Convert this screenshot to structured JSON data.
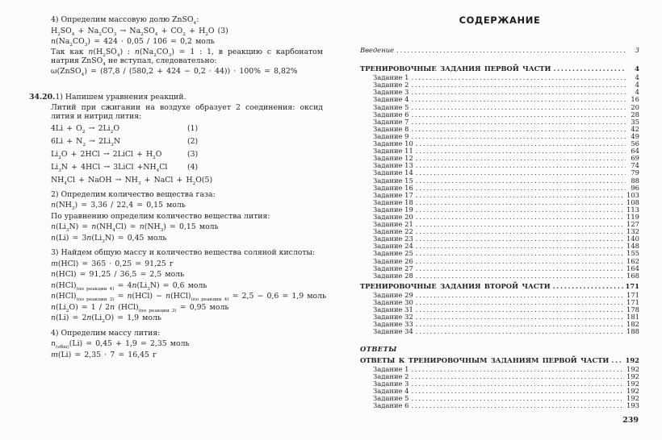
{
  "left_page": {
    "lines": [
      {
        "kind": "step",
        "text": "4) Определим массовую долю ZnSO_{4}:"
      },
      {
        "kind": "formula",
        "text": "H_{2}SO_{4} + Na_{2}CO_{3} → Na_{2}SO_{4} + CO_{2} + H_{2}O (3)"
      },
      {
        "kind": "formula",
        "text": "//n//(Na_{2}CO_{3}) = 424 · 0,05 / 106 = 0,2 моль"
      },
      {
        "kind": "para",
        "text": "Так как //n//(H_{2}SO_{4}) : //n//(Na_{2}CO_{3}) = 1 : 1, в реакцию с карбонатом натрия ZnSO_{4} не вступал, следовательно:"
      },
      {
        "kind": "formula",
        "text": "ω(ZnSO_{4}) = (87,8 / (580,2 + 424 − 0,2 · 44)) · 100% = 8,82%"
      },
      {
        "kind": "problem",
        "label": "34.20.",
        "text": "1) Напишем уравнения реакций."
      },
      {
        "kind": "para",
        "text": "Литий при сжигании на воздухе образует 2 соединения: оксид лития и ни­трид лития:"
      },
      {
        "kind": "equation",
        "text": "4Li + O_{2} → 2Li_{2}O",
        "num": "(1)"
      },
      {
        "kind": "equation",
        "text": "6Li + N_{2} → 2Li_{3}N",
        "num": "(2)"
      },
      {
        "kind": "equation",
        "text": "Li_{2}O + 2HCl → 2LiCl + H_{2}O",
        "num": "(3)"
      },
      {
        "kind": "equation",
        "text": "Li_{3}N + 4HCl → 3LiCl +NH_{4}Cl",
        "num": "(4)"
      },
      {
        "kind": "equation",
        "text": "NH_{4}Cl + NaOH → NH_{3} + NaCl + H_{2}O",
        "num": "(5)"
      },
      {
        "kind": "step",
        "text": "2) Определим количество вещества газа:"
      },
      {
        "kind": "formula",
        "text": "//n//(NH_{3}) = 3,36 / 22,4 = 0,15 моль"
      },
      {
        "kind": "plain",
        "text": "По уравнению определим количество вещества лития:"
      },
      {
        "kind": "formula",
        "text": "//n//(Li_{3}N) = //n//(NH_{4}Cl) = //n//(NH_{3}) = 0,15 моль"
      },
      {
        "kind": "formula",
        "text": "//n//(Li) = 3//n//(Li_{3}N) = 0,45 моль"
      },
      {
        "kind": "step",
        "text": "3) Найдем общую массу и количество вещества соляной кислоты:"
      },
      {
        "kind": "formula",
        "text": "//m//(HCl) = 365 · 0,25 = 91,25 г"
      },
      {
        "kind": "formula",
        "text": "//n//(HCl) = 91,25 / 36,5 = 2,5 моль"
      },
      {
        "kind": "formula",
        "text": "//n//(HCl)_{(по реакции 4)} = 4//n//(Li_{3}N) = 0,6 моль"
      },
      {
        "kind": "formula",
        "text": "//n//(HCl)_{(по реакции 3)} = //n//(HCl) − //n//(HCl)_{(по реакции 4)} = 2,5 − 0,6 = 1,9 моль"
      },
      {
        "kind": "formula",
        "text": "//n//(Li_{2}O) = 1 / 2//n// (HCl)_{(по реакции 3)} = 0,95 моль"
      },
      {
        "kind": "formula",
        "text": "//n//(Li) = 2//n//(Li_{2}O) = 1,9 моль"
      },
      {
        "kind": "step",
        "text": "4) Определим массу лития:"
      },
      {
        "kind": "formula",
        "text": "//n//_{(общ)}(Li) = 0,45 + 1,9 = 2,35 моль"
      },
      {
        "kind": "formula",
        "text": "//m//(Li) = 2,35 · 7 = 16,45 г"
      }
    ]
  },
  "right_page": {
    "title": "СОДЕРЖАНИЕ",
    "rows": [
      {
        "kind": "intro",
        "label": "Введение",
        "page": "3"
      },
      {
        "kind": "section",
        "label": "ТРЕНИРОВОЧНЫЕ ЗАДАНИЯ ПЕРВОЙ ЧАСТИ",
        "page": "4"
      },
      {
        "kind": "entry",
        "label": "Задание 1",
        "page": "4"
      },
      {
        "kind": "entry",
        "label": "Задание 2",
        "page": "4"
      },
      {
        "kind": "entry",
        "label": "Задание 3",
        "page": "4"
      },
      {
        "kind": "entry",
        "label": "Задание 4",
        "page": "16"
      },
      {
        "kind": "entry",
        "label": "Задание 5",
        "page": "20"
      },
      {
        "kind": "entry",
        "label": "Задание 6",
        "page": "28"
      },
      {
        "kind": "entry",
        "label": "Задание 7",
        "page": "35"
      },
      {
        "kind": "entry",
        "label": "Задание 8",
        "page": "42"
      },
      {
        "kind": "entry",
        "label": "Задание 9",
        "page": "49"
      },
      {
        "kind": "entry",
        "label": "Задание 10",
        "page": "56"
      },
      {
        "kind": "entry",
        "label": "Задание 11",
        "page": "64"
      },
      {
        "kind": "entry",
        "label": "Задание 12",
        "page": "69"
      },
      {
        "kind": "entry",
        "label": "Задание 13",
        "page": "74"
      },
      {
        "kind": "entry",
        "label": "Задание 14",
        "page": "79"
      },
      {
        "kind": "entry",
        "label": "Задание 15",
        "page": "88"
      },
      {
        "kind": "entry",
        "label": "Задание 16",
        "page": "96"
      },
      {
        "kind": "entry",
        "label": "Задание 17",
        "page": "103"
      },
      {
        "kind": "entry",
        "label": "Задание 18",
        "page": "108"
      },
      {
        "kind": "entry",
        "label": "Задание 19",
        "page": "113"
      },
      {
        "kind": "entry",
        "label": "Задание 20",
        "page": "119"
      },
      {
        "kind": "entry",
        "label": "Задание 21",
        "page": "127"
      },
      {
        "kind": "entry",
        "label": "Задание 22",
        "page": "132"
      },
      {
        "kind": "entry",
        "label": "Задание 23",
        "page": "140"
      },
      {
        "kind": "entry",
        "label": "Задание 24",
        "page": "148"
      },
      {
        "kind": "entry",
        "label": "Задание 25",
        "page": "155"
      },
      {
        "kind": "entry",
        "label": "Задание 26",
        "page": "162"
      },
      {
        "kind": "entry",
        "label": "Задание 27",
        "page": "164"
      },
      {
        "kind": "entry",
        "label": "Задание 28",
        "page": "168"
      },
      {
        "kind": "section",
        "label": "ТРЕНИРОВОЧНЫЕ ЗАДАНИЯ ВТОРОЙ ЧАСТИ",
        "page": "171"
      },
      {
        "kind": "entry",
        "label": "Задание 29",
        "page": "171"
      },
      {
        "kind": "entry",
        "label": "Задание 30",
        "page": "171"
      },
      {
        "kind": "entry",
        "label": "Задание 31",
        "page": "178"
      },
      {
        "kind": "entry",
        "label": "Задание 32",
        "page": "181"
      },
      {
        "kind": "entry",
        "label": "Задание 33",
        "page": "182"
      },
      {
        "kind": "entry",
        "label": "Задание 34",
        "page": "188"
      },
      {
        "kind": "part",
        "label": "ОТВЕТЫ",
        "page": ""
      },
      {
        "kind": "section",
        "label": "ОТВЕТЫ К ТРЕНИРОВОЧНЫМ ЗАДАНИЯМ ПЕРВОЙ ЧАСТИ",
        "page": "192"
      },
      {
        "kind": "entry",
        "label": "Задание 1",
        "page": "192"
      },
      {
        "kind": "entry",
        "label": "Задание 2",
        "page": "192"
      },
      {
        "kind": "entry",
        "label": "Задание 3",
        "page": "192"
      },
      {
        "kind": "entry",
        "label": "Задание 4",
        "page": "192"
      },
      {
        "kind": "entry",
        "label": "Задание 5",
        "page": "192"
      },
      {
        "kind": "entry",
        "label": "Задание 6",
        "page": "193"
      }
    ],
    "page_number": "239"
  }
}
